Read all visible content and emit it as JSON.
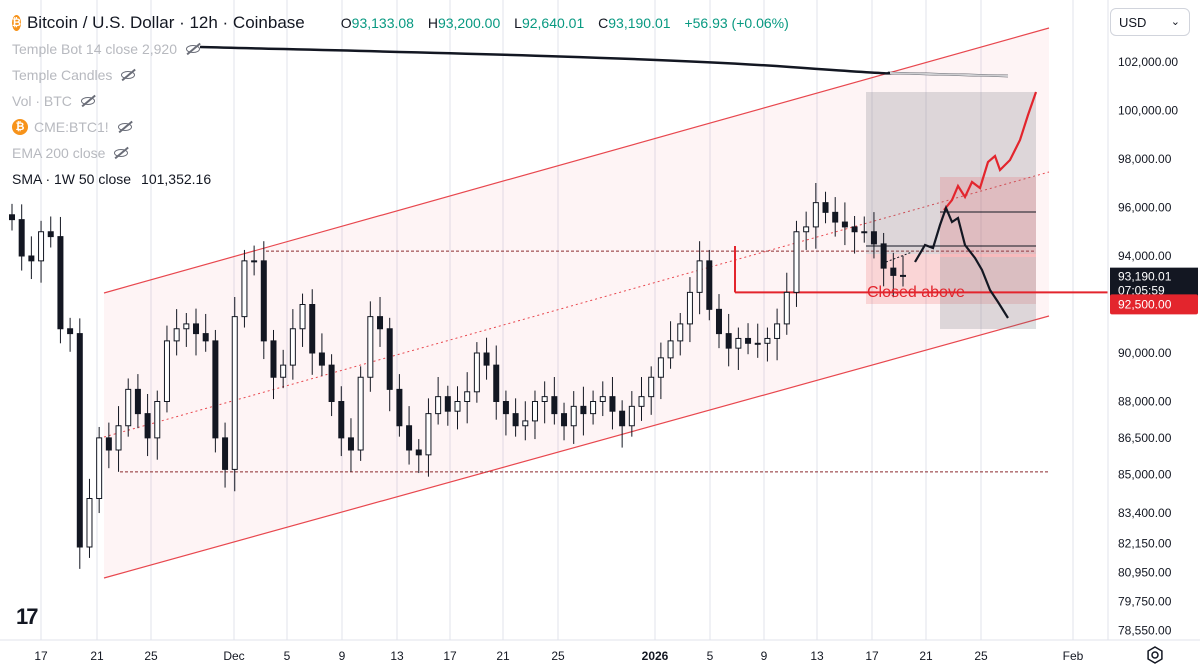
{
  "legend": {
    "symbol_title": "Bitcoin / U.S. Dollar · 12h · Coinbase",
    "coin_glyph": "₿",
    "ohlc": {
      "o_label": "O",
      "o": "93,133.08",
      "h_label": "H",
      "h": "93,200.00",
      "l_label": "L",
      "l": "92,640.01",
      "c_label": "C",
      "c": "93,190.01",
      "change": "+56.93 (+0.06%)"
    },
    "indicators": [
      {
        "label": "Temple Bot 14 close 2,920",
        "icon": "coin-icon-none"
      },
      {
        "label": "Temple Candles"
      },
      {
        "label": "Vol · BTC"
      },
      {
        "label": "CME:BTC1!"
      },
      {
        "label": "EMA 200 close"
      }
    ],
    "sma": {
      "label": "SMA · 1W 50 close",
      "value": "101,352.16"
    }
  },
  "currency": {
    "value": "USD",
    "chevron": "⌄"
  },
  "logo": {
    "text": "17"
  },
  "colors": {
    "up": "#089981",
    "down": "#131722",
    "channel": "#e8474e",
    "sma": "#131722",
    "price_badge": "#e3252d"
  },
  "chart_data": {
    "type": "candlestick",
    "title": "Bitcoin / U.S. Dollar · 12h · Coinbase",
    "ylim": [
      78000,
      104500
    ],
    "y_ticks": [
      "102,000.00",
      "100,000.00",
      "98,000.00",
      "96,000.00",
      "94,000.00",
      "92,500.00",
      "90,000.00",
      "88,000.00",
      "86,500.00",
      "85,000.00",
      "83,400.00",
      "82,150.00",
      "80,950.00",
      "79,750.00",
      "78,550.00"
    ],
    "y_tick_values": [
      102000,
      100000,
      98000,
      96000,
      94000,
      92500,
      90000,
      88000,
      86500,
      85000,
      83400,
      82150,
      80950,
      79750,
      78550
    ],
    "x_ticks": [
      "17",
      "21",
      "25",
      "Dec",
      "5",
      "9",
      "13",
      "17",
      "21",
      "25",
      "2026",
      "5",
      "9",
      "13",
      "17",
      "21",
      "25",
      "Feb"
    ],
    "x_tick_bold": [
      "2026"
    ],
    "current_price": {
      "label": "93,190.01",
      "countdown": "07:05:59",
      "value": 93190.01
    },
    "level_price": {
      "label": "92,500.00",
      "value": 92500
    },
    "annotation": "Closed above",
    "horizontal_levels": [
      94200,
      85100
    ],
    "closes": [
      95500,
      94000,
      93800,
      95000,
      94800,
      91000,
      90800,
      82000,
      84000,
      86500,
      86000,
      87000,
      88500,
      87500,
      86500,
      88000,
      90500,
      91000,
      91200,
      90800,
      90500,
      86500,
      85200,
      91500,
      93800,
      93800,
      90500,
      89000,
      89500,
      91000,
      92000,
      90000,
      89500,
      88000,
      86500,
      86000,
      89000,
      91500,
      91000,
      88500,
      87000,
      86000,
      85800,
      87500,
      88200,
      87600,
      88000,
      88400,
      90000,
      89500,
      88000,
      87500,
      87000,
      87200,
      88000,
      88200,
      87500,
      87000,
      87800,
      87500,
      88000,
      88200,
      87600,
      87000,
      87800,
      88200,
      89000,
      89800,
      90500,
      91200,
      92500,
      93800,
      91800,
      90800,
      90200,
      90600,
      90400,
      90400,
      90600,
      91200,
      92500,
      95000,
      95200,
      96200,
      95800,
      95400,
      95200,
      95000,
      95000,
      94500,
      93500,
      93200,
      93190
    ]
  }
}
